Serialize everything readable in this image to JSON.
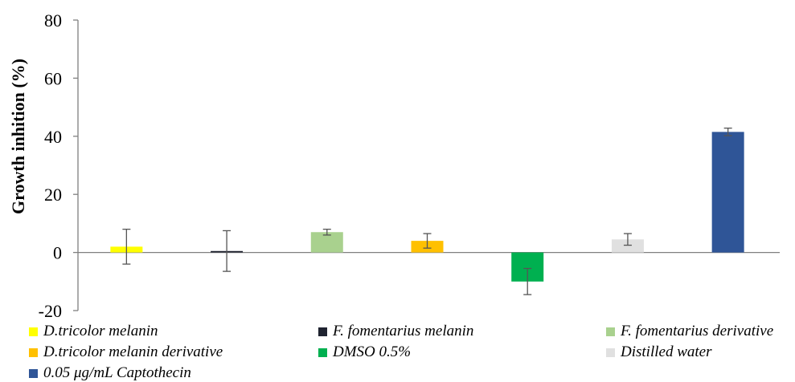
{
  "chart_data": {
    "type": "bar",
    "title": "",
    "xlabel": "",
    "ylabel": "Growth inhition (%)",
    "ylim": [
      -20,
      80
    ],
    "yticks": [
      -20,
      0,
      20,
      40,
      60,
      80
    ],
    "grid": false,
    "legend_position": "bottom",
    "series": [
      {
        "name": "D.tricolor melanin",
        "value": 2,
        "error": 6,
        "color": "#ffff00"
      },
      {
        "name": "F. fomentarius melanin",
        "value": 0.5,
        "error": 7,
        "color": "#1f2330"
      },
      {
        "name": "F. fomentarius derivative",
        "value": 7,
        "error": 1,
        "color": "#a9d18e"
      },
      {
        "name": "D.tricolor melanin derivative",
        "value": 4,
        "error": 2.5,
        "color": "#ffc000"
      },
      {
        "name": "DMSO 0.5%",
        "value": -10,
        "error": 4.5,
        "color": "#00b050"
      },
      {
        "name": "Distilled water",
        "value": 4.5,
        "error": 2,
        "color": "#e0e0e0"
      },
      {
        "name": "0.05 μg/mL Captothecin",
        "value": 41.5,
        "error": 1.3,
        "color": "#2f5597"
      }
    ]
  }
}
